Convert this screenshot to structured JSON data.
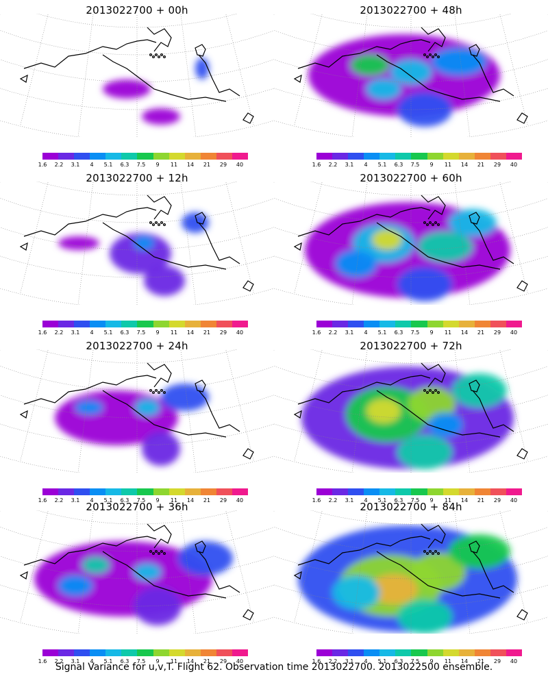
{
  "panels": [
    {
      "title": "2013022700 + 00h",
      "lead_hours": 0
    },
    {
      "title": "2013022700 + 48h",
      "lead_hours": 48
    },
    {
      "title": "2013022700 + 12h",
      "lead_hours": 12
    },
    {
      "title": "2013022700 + 60h",
      "lead_hours": 60
    },
    {
      "title": "2013022700 + 24h",
      "lead_hours": 24
    },
    {
      "title": "2013022700 + 72h",
      "lead_hours": 72
    },
    {
      "title": "2013022700 + 36h",
      "lead_hours": 36
    },
    {
      "title": "2013022700 + 84h",
      "lead_hours": 84
    }
  ],
  "legend": {
    "ticks": [
      "1.6",
      "2.2",
      "3.1",
      "4",
      "5.1",
      "6.3",
      "7.5",
      "9",
      "11",
      "14",
      "21",
      "29",
      "40"
    ],
    "colors": [
      "#9b00d6",
      "#6a28e4",
      "#2f4ff0",
      "#0a8ef4",
      "#16b9e6",
      "#0ec9aa",
      "#18c84e",
      "#8ed630",
      "#d4d92e",
      "#e7b13a",
      "#f08535",
      "#f0505a",
      "#f01a8e"
    ]
  },
  "caption": "Signal Variance for u,v,T. Flight 62. Observation time 2013022700. 2013022500 ensemble."
}
